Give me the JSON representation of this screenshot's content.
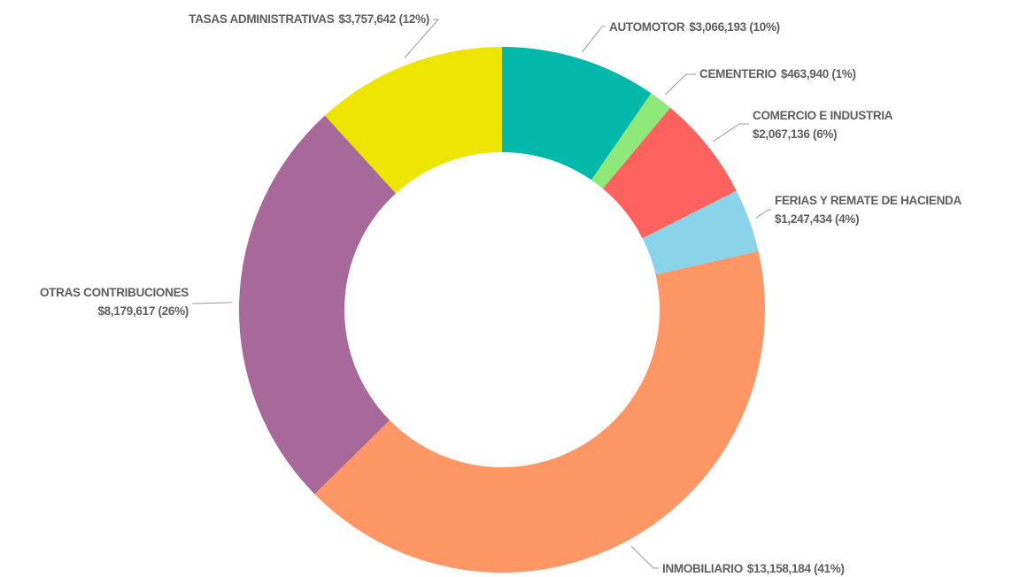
{
  "chart_data": {
    "type": "donut",
    "categories": [
      "AUTOMOTOR",
      "CEMENTERIO",
      "COMERCIO E INDUSTRIA",
      "FERIAS Y REMATE DE HACIENDA",
      "INMOBILIARIO",
      "OTRAS CONTRIBUCIONES",
      "TASAS ADMINISTRATIVAS"
    ],
    "values": [
      3066193,
      463940,
      2067136,
      1247434,
      13158184,
      8179617,
      3757642
    ],
    "value_labels": [
      "$3,066,193 (10%)",
      "$463,940 (1%)",
      "$2,067,136 (6%)",
      "$1,247,434 (4%)",
      "$13,158,184 (41%)",
      "$8,179,617 (26%)",
      "$3,757,642 (12%)"
    ],
    "colors": [
      "#01b8aa",
      "#8ee87a",
      "#fd625e",
      "#8ad4eb",
      "#fe9666",
      "#a66999",
      "#ede400"
    ]
  }
}
